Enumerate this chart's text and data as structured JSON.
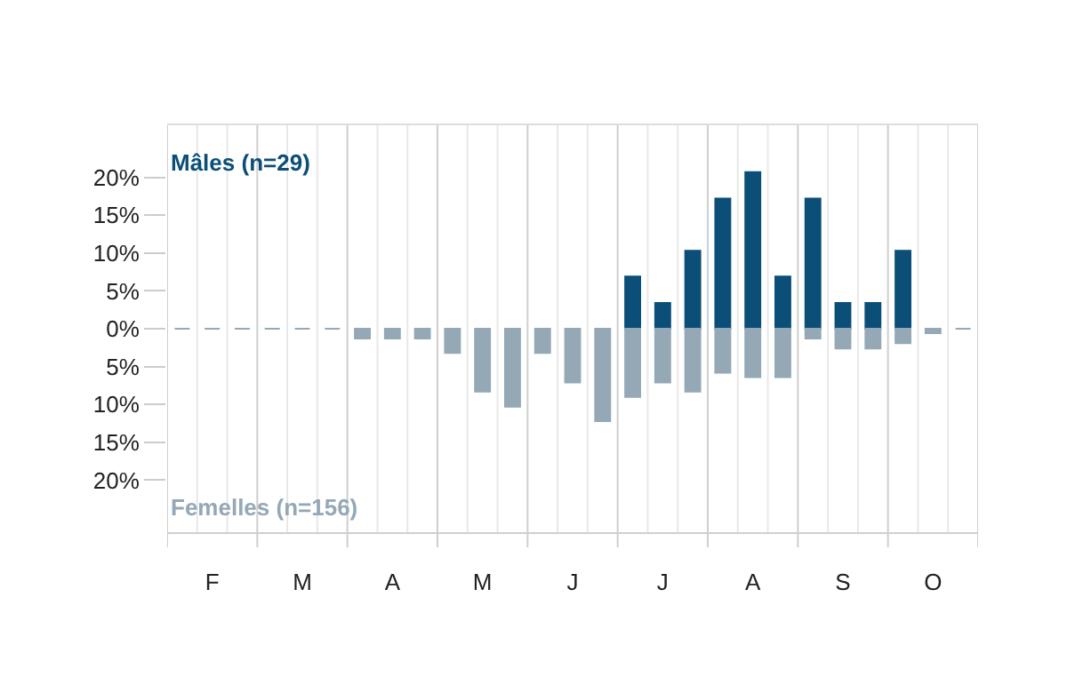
{
  "chart_data": {
    "type": "bar",
    "categories": [
      null,
      "F",
      null,
      null,
      "M",
      null,
      null,
      "A",
      null,
      null,
      "M",
      null,
      null,
      "J",
      null,
      null,
      "J",
      null,
      null,
      "A",
      null,
      null,
      "S",
      null,
      null,
      "O",
      null
    ],
    "series": [
      {
        "name": "Mâles (n=29)",
        "color": "#0b4f78",
        "values": [
          null,
          null,
          null,
          null,
          null,
          null,
          null,
          null,
          null,
          null,
          null,
          null,
          null,
          null,
          null,
          6.9,
          3.4,
          10.3,
          17.2,
          20.7,
          6.9,
          17.2,
          3.4,
          3.4,
          10.3,
          null,
          null
        ]
      },
      {
        "name": "Femelles (n=156)",
        "color": "#94a8b6",
        "values": [
          0,
          0,
          0,
          0,
          0,
          0,
          -1.3,
          -1.3,
          -1.3,
          -3.2,
          -8.3,
          -10.3,
          -3.2,
          -7.1,
          -12.2,
          -9.0,
          -7.1,
          -8.3,
          -5.8,
          -6.4,
          -6.4,
          -1.3,
          -2.6,
          -2.6,
          -1.9,
          -0.6,
          0
        ]
      }
    ],
    "ylim": [
      -27,
      27
    ],
    "yticks": [
      {
        "value": -20,
        "label": "20%"
      },
      {
        "value": -15,
        "label": "15%"
      },
      {
        "value": -10,
        "label": "10%"
      },
      {
        "value": -5,
        "label": "5%"
      },
      {
        "value": 0,
        "label": "0%"
      },
      {
        "value": 5,
        "label": "5%"
      },
      {
        "value": 10,
        "label": "10%"
      },
      {
        "value": 15,
        "label": "15%"
      },
      {
        "value": 20,
        "label": "20%"
      }
    ],
    "grid": "x",
    "legend": false
  }
}
